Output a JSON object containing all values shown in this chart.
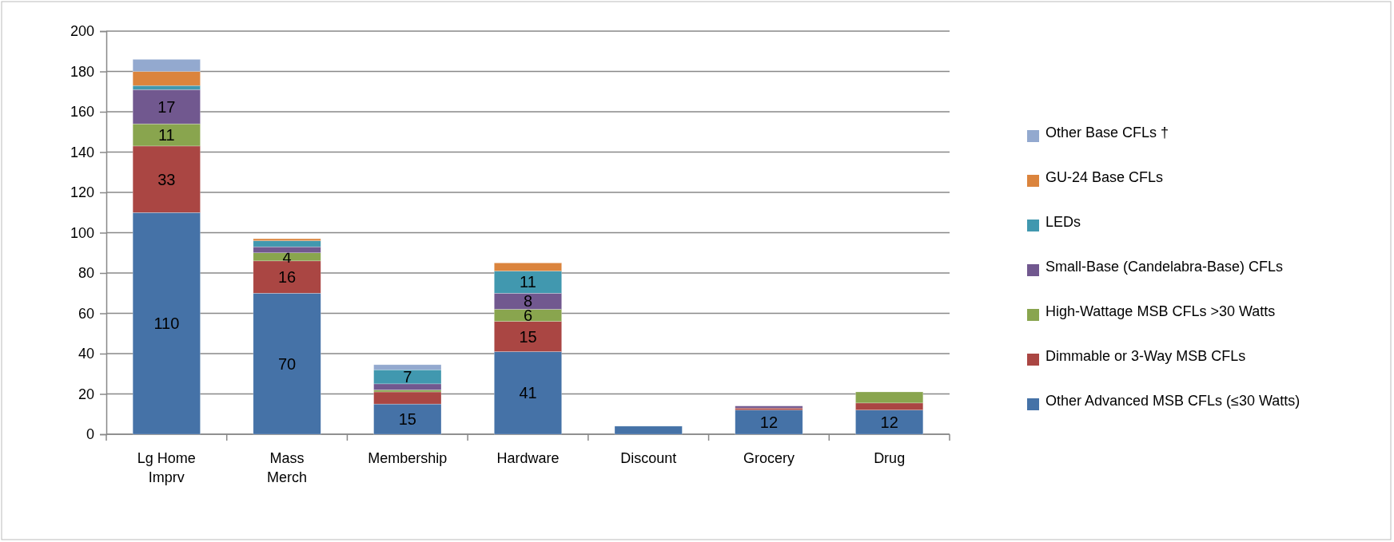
{
  "chart_data": {
    "type": "bar",
    "stacked": true,
    "categories": [
      "Lg Home Imprv",
      "Mass Merch",
      "Membership",
      "Hardware",
      "Discount",
      "Grocery",
      "Drug"
    ],
    "series": [
      {
        "name": "Other Advanced MSB CFLs (≤30 Watts)",
        "color": "#4572a7",
        "values": [
          110,
          70,
          15,
          41,
          4,
          12,
          12
        ],
        "value_labels": [
          "110",
          "70",
          "15",
          "41",
          null,
          "12",
          "12"
        ]
      },
      {
        "name": "Dimmable or 3-Way MSB CFLs",
        "color": "#aa4643",
        "values": [
          33,
          16,
          6,
          15,
          0,
          1,
          3.5
        ],
        "value_labels": [
          "33",
          "16",
          null,
          "15",
          null,
          null,
          null
        ]
      },
      {
        "name": "High-Wattage MSB CFLs >30 Watts",
        "color": "#89a54e",
        "values": [
          11,
          4,
          1,
          6,
          0,
          0,
          5.5
        ],
        "value_labels": [
          "11",
          "4",
          null,
          "6",
          null,
          null,
          null
        ]
      },
      {
        "name": "Small-Base (Candelabra-Base) CFLs",
        "color": "#71588f",
        "values": [
          17,
          3,
          3,
          8,
          0,
          1,
          0
        ],
        "value_labels": [
          "17",
          null,
          null,
          "8",
          null,
          null,
          null
        ]
      },
      {
        "name": "LEDs",
        "color": "#4198af",
        "values": [
          2,
          3,
          7,
          11,
          0,
          0,
          0
        ],
        "value_labels": [
          null,
          null,
          "7",
          "11",
          null,
          null,
          null
        ]
      },
      {
        "name": "GU-24 Base CFLs",
        "color": "#db843d",
        "values": [
          7,
          1,
          0,
          4,
          0,
          0,
          0
        ],
        "value_labels": [
          null,
          null,
          null,
          null,
          null,
          null,
          null
        ]
      },
      {
        "name": "Other Base CFLs †",
        "color": "#93a9cf",
        "values": [
          6,
          0,
          2.5,
          0,
          0,
          0,
          0
        ],
        "value_labels": [
          null,
          null,
          null,
          null,
          null,
          null,
          null
        ]
      }
    ],
    "ylim": [
      0,
      200
    ],
    "yticks": [
      0,
      20,
      40,
      60,
      80,
      100,
      120,
      140,
      160,
      180,
      200
    ],
    "grid": "y",
    "legend": "right"
  }
}
